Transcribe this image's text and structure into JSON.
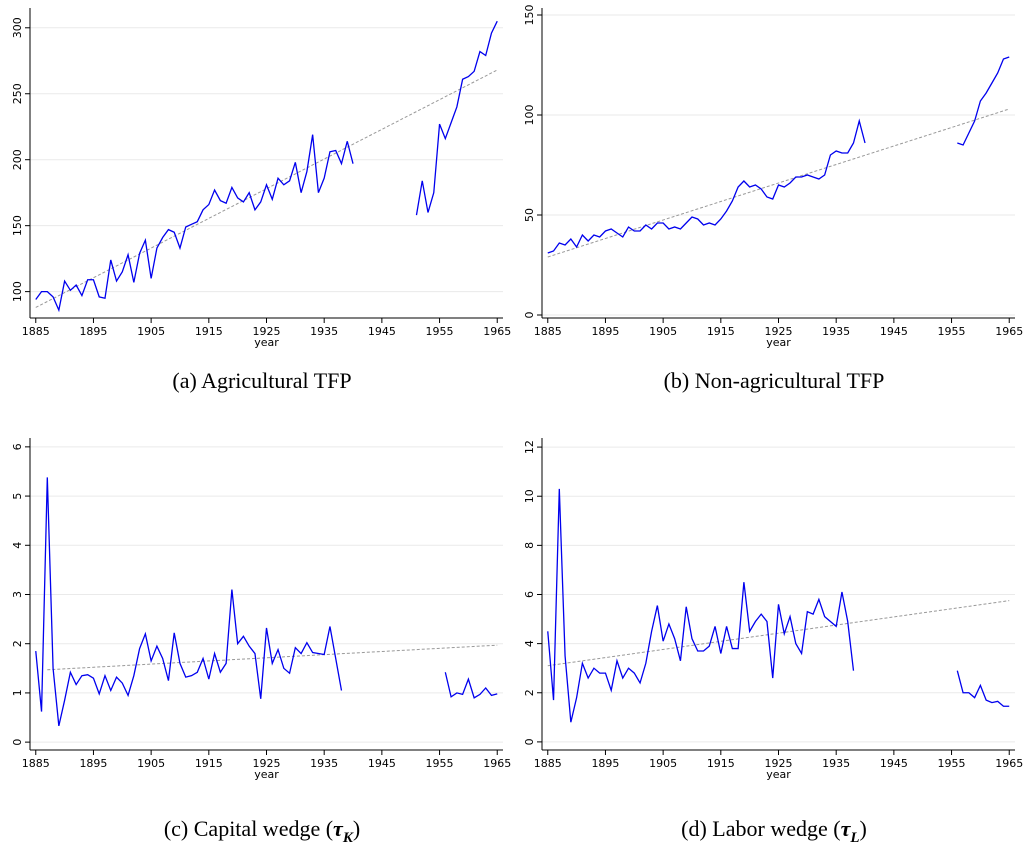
{
  "chart_data": [
    {
      "type": "line",
      "xlabel": "year",
      "caption_parts": [
        "(a) Agricultural TFP"
      ],
      "xlim": [
        1884,
        1966
      ],
      "xticks": [
        1885,
        1895,
        1905,
        1915,
        1925,
        1935,
        1945,
        1955,
        1965
      ],
      "ylim": [
        80,
        315
      ],
      "yticks": [
        100,
        150,
        200,
        250,
        300
      ],
      "grid": true,
      "series": [
        {
          "color": "#0000ee",
          "x": [
            1885,
            1886,
            1887,
            1888,
            1889,
            1890,
            1891,
            1892,
            1893,
            1894,
            1895,
            1896,
            1897,
            1898,
            1899,
            1900,
            1901,
            1902,
            1903,
            1904,
            1905,
            1906,
            1907,
            1908,
            1909,
            1910,
            1911,
            1912,
            1913,
            1914,
            1915,
            1916,
            1917,
            1918,
            1919,
            1920,
            1921,
            1922,
            1923,
            1924,
            1925,
            1926,
            1927,
            1928,
            1929,
            1930,
            1931,
            1932,
            1933,
            1934,
            1935,
            1936,
            1937,
            1938,
            1939,
            1940,
            1941,
            1942,
            1943,
            1944,
            1945,
            1946,
            1947,
            1948,
            1949,
            1950,
            1951,
            1952,
            1953,
            1954,
            1955,
            1956,
            1957,
            1958,
            1959,
            1960,
            1961,
            1962,
            1963,
            1964,
            1965
          ],
          "values": [
            94,
            100,
            100,
            96,
            86,
            108,
            101,
            105,
            97,
            109,
            109,
            96,
            95,
            124,
            108,
            115,
            128,
            107,
            129,
            139,
            110,
            133,
            141,
            147,
            145,
            133,
            149,
            151,
            153,
            162,
            166,
            177,
            169,
            167,
            179,
            171,
            168,
            175,
            162,
            168,
            181,
            170,
            186,
            181,
            184,
            198,
            175,
            191,
            219,
            175,
            186,
            206,
            207,
            197,
            214,
            197,
            null,
            null,
            null,
            null,
            null,
            null,
            null,
            null,
            null,
            null,
            158,
            184,
            160,
            175,
            227,
            216,
            228,
            240,
            261,
            263,
            267,
            282,
            279,
            296,
            305
          ]
        }
      ],
      "trend": {
        "color": "#999999",
        "x": [
          1885,
          1965
        ],
        "values": [
          88,
          268
        ]
      }
    },
    {
      "type": "line",
      "xlabel": "year",
      "caption_parts": [
        "(b) Non-agricultural TFP"
      ],
      "xlim": [
        1884,
        1966
      ],
      "xticks": [
        1885,
        1895,
        1905,
        1915,
        1925,
        1935,
        1945,
        1955,
        1965
      ],
      "ylim": [
        -1.5,
        153.5
      ],
      "yticks": [
        0,
        50,
        100,
        150
      ],
      "grid": true,
      "series": [
        {
          "color": "#0000ee",
          "x": [
            1885,
            1886,
            1887,
            1888,
            1889,
            1890,
            1891,
            1892,
            1893,
            1894,
            1895,
            1896,
            1897,
            1898,
            1899,
            1900,
            1901,
            1902,
            1903,
            1904,
            1905,
            1906,
            1907,
            1908,
            1909,
            1910,
            1911,
            1912,
            1913,
            1914,
            1915,
            1916,
            1917,
            1918,
            1919,
            1920,
            1921,
            1922,
            1923,
            1924,
            1925,
            1926,
            1927,
            1928,
            1929,
            1930,
            1931,
            1932,
            1933,
            1934,
            1935,
            1936,
            1937,
            1938,
            1939,
            1940,
            1941,
            1942,
            1943,
            1944,
            1945,
            1946,
            1947,
            1948,
            1949,
            1950,
            1951,
            1952,
            1953,
            1954,
            1955,
            1956,
            1957,
            1958,
            1959,
            1960,
            1961,
            1962,
            1963,
            1964,
            1965
          ],
          "values": [
            31,
            32,
            36,
            35,
            38,
            34,
            40,
            37,
            40,
            39,
            42,
            43,
            41,
            39,
            44,
            42,
            42,
            45,
            43,
            46,
            46,
            43,
            44,
            43,
            46,
            49,
            48,
            45,
            46,
            45,
            48,
            52,
            57,
            64,
            67,
            64,
            65,
            63,
            59,
            58,
            65,
            64,
            66,
            69,
            69,
            70,
            69,
            68,
            70,
            80,
            82,
            81,
            81,
            86,
            97,
            86,
            null,
            null,
            null,
            null,
            null,
            null,
            null,
            null,
            null,
            null,
            null,
            null,
            null,
            null,
            null,
            86,
            85,
            91,
            97,
            107,
            111,
            116,
            121,
            128,
            129
          ]
        }
      ],
      "trend": {
        "color": "#999999",
        "x": [
          1885,
          1965
        ],
        "values": [
          29,
          103
        ]
      }
    },
    {
      "type": "line",
      "xlabel": "year",
      "caption_parts": [
        "(c) Capital wedge (",
        "τ",
        "K",
        ")"
      ],
      "xlim": [
        1884,
        1966
      ],
      "xticks": [
        1885,
        1895,
        1905,
        1915,
        1925,
        1935,
        1945,
        1955,
        1965
      ],
      "ylim": [
        -0.16,
        6.18
      ],
      "yticks": [
        0,
        1,
        2,
        3,
        4,
        5,
        6
      ],
      "grid": true,
      "series": [
        {
          "color": "#0000ee",
          "x": [
            1885,
            1886,
            1887,
            1888,
            1889,
            1890,
            1891,
            1892,
            1893,
            1894,
            1895,
            1896,
            1897,
            1898,
            1899,
            1900,
            1901,
            1902,
            1903,
            1904,
            1905,
            1906,
            1907,
            1908,
            1909,
            1910,
            1911,
            1912,
            1913,
            1914,
            1915,
            1916,
            1917,
            1918,
            1919,
            1920,
            1921,
            1922,
            1923,
            1924,
            1925,
            1926,
            1927,
            1928,
            1929,
            1930,
            1931,
            1932,
            1933,
            1934,
            1935,
            1936,
            1937,
            1938,
            1939,
            1940,
            1941,
            1942,
            1943,
            1944,
            1945,
            1946,
            1947,
            1948,
            1949,
            1950,
            1951,
            1952,
            1953,
            1954,
            1955,
            1956,
            1957,
            1958,
            1959,
            1960,
            1961,
            1962,
            1963,
            1964,
            1965
          ],
          "values": [
            1.85,
            0.62,
            5.38,
            1.5,
            0.33,
            0.85,
            1.42,
            1.17,
            1.35,
            1.37,
            1.3,
            0.98,
            1.35,
            1.05,
            1.32,
            1.2,
            0.95,
            1.35,
            1.9,
            2.2,
            1.65,
            1.95,
            1.7,
            1.25,
            2.22,
            1.6,
            1.32,
            1.35,
            1.42,
            1.7,
            1.28,
            1.8,
            1.42,
            1.6,
            3.1,
            2.0,
            2.15,
            1.95,
            1.8,
            0.88,
            2.32,
            1.6,
            1.88,
            1.5,
            1.4,
            1.92,
            1.8,
            2.02,
            1.82,
            1.8,
            1.78,
            2.35,
            1.7,
            1.05,
            null,
            null,
            null,
            null,
            null,
            null,
            null,
            null,
            null,
            null,
            null,
            null,
            null,
            null,
            null,
            null,
            null,
            1.42,
            0.92,
            1.0,
            0.97,
            1.28,
            0.9,
            0.97,
            1.1,
            0.95,
            0.98
          ]
        }
      ],
      "trend": {
        "color": "#999999",
        "x": [
          1887,
          1965
        ],
        "values": [
          1.47,
          1.97
        ]
      }
    },
    {
      "type": "line",
      "xlabel": "year",
      "caption_parts": [
        "(d) Labor wedge (",
        "τ",
        "L",
        ")"
      ],
      "xlim": [
        1884,
        1966
      ],
      "xticks": [
        1885,
        1895,
        1905,
        1915,
        1925,
        1935,
        1945,
        1955,
        1965
      ],
      "ylim": [
        -0.33,
        12.37
      ],
      "yticks": [
        0,
        2,
        4,
        6,
        8,
        10,
        12
      ],
      "grid": true,
      "series": [
        {
          "color": "#0000ee",
          "x": [
            1885,
            1886,
            1887,
            1888,
            1889,
            1890,
            1891,
            1892,
            1893,
            1894,
            1895,
            1896,
            1897,
            1898,
            1899,
            1900,
            1901,
            1902,
            1903,
            1904,
            1905,
            1906,
            1907,
            1908,
            1909,
            1910,
            1911,
            1912,
            1913,
            1914,
            1915,
            1916,
            1917,
            1918,
            1919,
            1920,
            1921,
            1922,
            1923,
            1924,
            1925,
            1926,
            1927,
            1928,
            1929,
            1930,
            1931,
            1932,
            1933,
            1934,
            1935,
            1936,
            1937,
            1938,
            1939,
            1940,
            1941,
            1942,
            1943,
            1944,
            1945,
            1946,
            1947,
            1948,
            1949,
            1950,
            1951,
            1952,
            1953,
            1954,
            1955,
            1956,
            1957,
            1958,
            1959,
            1960,
            1961,
            1962,
            1963,
            1964,
            1965
          ],
          "values": [
            4.5,
            1.7,
            10.3,
            3.5,
            0.8,
            1.8,
            3.2,
            2.6,
            3.0,
            2.8,
            2.8,
            2.1,
            3.3,
            2.6,
            3.0,
            2.8,
            2.4,
            3.2,
            4.5,
            5.55,
            4.1,
            4.8,
            4.2,
            3.3,
            5.5,
            4.2,
            3.7,
            3.7,
            3.9,
            4.7,
            3.6,
            4.7,
            3.8,
            3.8,
            6.5,
            4.5,
            4.9,
            5.2,
            4.9,
            2.6,
            5.6,
            4.4,
            5.1,
            4.0,
            3.6,
            5.3,
            5.2,
            5.8,
            5.1,
            4.9,
            4.7,
            6.1,
            4.9,
            2.9,
            null,
            null,
            null,
            null,
            null,
            null,
            null,
            null,
            null,
            null,
            null,
            null,
            null,
            null,
            null,
            null,
            null,
            2.9,
            2.0,
            2.0,
            1.8,
            2.3,
            1.7,
            1.6,
            1.65,
            1.45,
            1.45
          ]
        }
      ],
      "trend": {
        "color": "#999999",
        "x": [
          1885,
          1965
        ],
        "values": [
          3.1,
          5.75
        ]
      }
    }
  ]
}
